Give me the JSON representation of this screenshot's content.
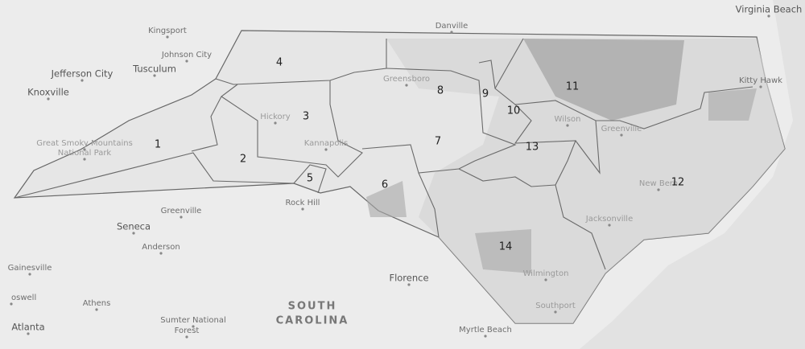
{
  "districts": [
    "1",
    "2",
    "3",
    "4",
    "5",
    "6",
    "7",
    "8",
    "9",
    "10",
    "11",
    "12",
    "13",
    "14"
  ],
  "places": [
    "Virginia Beach",
    "Danville",
    "Kingsport",
    "Johnson City",
    "Jefferson City",
    "Tusculum",
    "Knoxville",
    "Great Smoky Mountains",
    "National Park",
    "Kitty Hawk",
    "Greensboro",
    "Hickory",
    "Kannapolis",
    "Wilson",
    "Greenville",
    "New Bern",
    "Jacksonville",
    "Wilmington",
    "Southport",
    "Greenville",
    "Seneca",
    "Anderson",
    "Rock Hill",
    "Gainesville",
    "Athens",
    "Atlanta",
    "oswell",
    "Sumter National",
    "Forest",
    "Florence",
    "Myrtle Beach"
  ],
  "regions": [
    "SOUTH",
    "CAROLINA"
  ]
}
